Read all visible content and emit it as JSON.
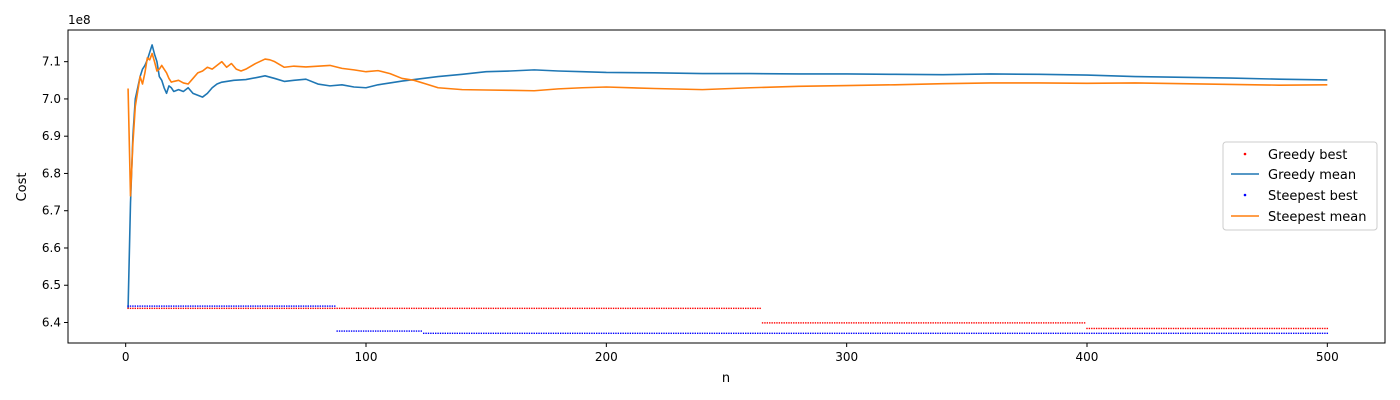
{
  "chart_data": {
    "type": "line",
    "title": "",
    "xlabel": "n",
    "ylabel": "Cost",
    "y_offset_text": "1e8",
    "xlim": [
      -24,
      524
    ],
    "ylim": [
      634500000,
      718500000
    ],
    "x_ticks": [
      0,
      100,
      200,
      300,
      400,
      500
    ],
    "x_tick_labels": [
      "0",
      "100",
      "200",
      "300",
      "400",
      "500"
    ],
    "y_ticks": [
      640000000,
      650000000,
      660000000,
      670000000,
      680000000,
      690000000,
      700000000,
      710000000
    ],
    "y_tick_labels": [
      "6.4",
      "6.5",
      "6.6",
      "6.7",
      "6.8",
      "6.9",
      "7.0",
      "7.1"
    ],
    "grid": false,
    "legend_position": "center-right",
    "series": [
      {
        "name": "Greedy best",
        "kind": "step-markers",
        "color": "#ff0000",
        "steps": [
          {
            "x_start": 1,
            "x_end": 264,
            "value": 643800000
          },
          {
            "x_start": 265,
            "x_end": 399,
            "value": 639900000
          },
          {
            "x_start": 400,
            "x_end": 500,
            "value": 638400000
          }
        ]
      },
      {
        "name": "Greedy mean",
        "kind": "line",
        "color": "#1f77b4",
        "x": [
          1,
          2,
          3,
          4,
          5,
          6,
          7,
          8,
          9,
          10,
          11,
          12,
          13,
          14,
          15,
          16,
          17,
          18,
          19,
          20,
          22,
          24,
          26,
          28,
          30,
          32,
          34,
          36,
          38,
          40,
          45,
          50,
          55,
          58,
          62,
          66,
          70,
          75,
          80,
          85,
          90,
          95,
          100,
          105,
          110,
          115,
          120,
          125,
          130,
          140,
          150,
          160,
          170,
          180,
          190,
          200,
          220,
          240,
          260,
          280,
          300,
          320,
          340,
          360,
          380,
          400,
          420,
          440,
          460,
          480,
          500
        ],
        "y": [
          643800000,
          672000000,
          690000000,
          700000000,
          703000000,
          706000000,
          708000000,
          709000000,
          710500000,
          712500000,
          714500000,
          712000000,
          710000000,
          706000000,
          705000000,
          703000000,
          701500000,
          703500000,
          703000000,
          702000000,
          702500000,
          702000000,
          703000000,
          701500000,
          701000000,
          700500000,
          701500000,
          703000000,
          704000000,
          704500000,
          705000000,
          705200000,
          705800000,
          706200000,
          705500000,
          704700000,
          705000000,
          705300000,
          704000000,
          703500000,
          703800000,
          703200000,
          703000000,
          703800000,
          704300000,
          704800000,
          705200000,
          705600000,
          706000000,
          706600000,
          707300000,
          707500000,
          707800000,
          707500000,
          707300000,
          707100000,
          707000000,
          706800000,
          706800000,
          706700000,
          706700000,
          706600000,
          706500000,
          706700000,
          706600000,
          706400000,
          706000000,
          705800000,
          705600000,
          705300000,
          705100000
        ]
      },
      {
        "name": "Steepest best",
        "kind": "step-markers",
        "color": "#0000ff",
        "steps": [
          {
            "x_start": 1,
            "x_end": 87,
            "value": 644400000
          },
          {
            "x_start": 88,
            "x_end": 123,
            "value": 637700000
          },
          {
            "x_start": 124,
            "x_end": 500,
            "value": 637100000
          }
        ]
      },
      {
        "name": "Steepest mean",
        "kind": "line",
        "color": "#ff7f0e",
        "x": [
          1,
          2,
          3,
          4,
          5,
          6,
          7,
          8,
          9,
          10,
          11,
          12,
          13,
          14,
          15,
          16,
          17,
          18,
          19,
          20,
          22,
          24,
          26,
          28,
          30,
          32,
          34,
          36,
          38,
          40,
          42,
          44,
          46,
          48,
          50,
          54,
          58,
          60,
          62,
          66,
          70,
          75,
          80,
          85,
          90,
          95,
          100,
          105,
          110,
          115,
          120,
          125,
          130,
          140,
          150,
          160,
          170,
          180,
          190,
          200,
          220,
          240,
          260,
          280,
          300,
          320,
          340,
          360,
          380,
          400,
          420,
          440,
          460,
          480,
          500
        ],
        "y": [
          702800000,
          674000000,
          688000000,
          698000000,
          702000000,
          706000000,
          704000000,
          707000000,
          711000000,
          710500000,
          712200000,
          710000000,
          707500000,
          708000000,
          709000000,
          708000000,
          707000000,
          705500000,
          704500000,
          704700000,
          705000000,
          704300000,
          704000000,
          705500000,
          707000000,
          707500000,
          708500000,
          708000000,
          709000000,
          710000000,
          708500000,
          709500000,
          708000000,
          707500000,
          708000000,
          709500000,
          710700000,
          710500000,
          710000000,
          708500000,
          708800000,
          708600000,
          708800000,
          709000000,
          708200000,
          707800000,
          707300000,
          707600000,
          706800000,
          705500000,
          705000000,
          704000000,
          703000000,
          702500000,
          702400000,
          702300000,
          702200000,
          702700000,
          703000000,
          703200000,
          702800000,
          702500000,
          703000000,
          703400000,
          703600000,
          703800000,
          704100000,
          704300000,
          704300000,
          704200000,
          704300000,
          704100000,
          703900000,
          703700000,
          703800000
        ]
      }
    ]
  }
}
